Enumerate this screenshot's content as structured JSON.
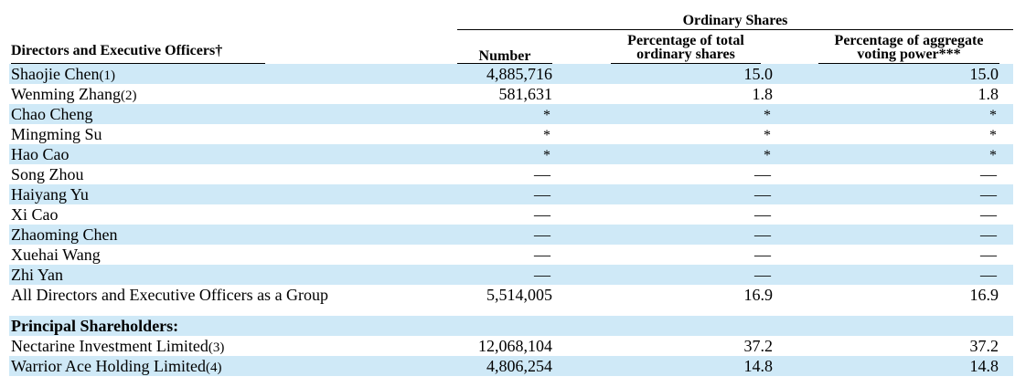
{
  "header": {
    "group_title": "Ordinary Shares",
    "left_label": "Directors and Executive Officers†",
    "col_number": "Number",
    "col_pct_line1": "Percentage of total",
    "col_pct_line2": "ordinary shares",
    "col_vote_line1": "Percentage of aggregate",
    "col_vote_line2": "voting power***"
  },
  "directors": [
    {
      "name": "Shaojie Chen",
      "note": "(1)",
      "number": "4,885,716",
      "pct": "15.0",
      "vote": "15.0"
    },
    {
      "name": "Wenming Zhang",
      "note": "(2)",
      "number": "581,631",
      "pct": "1.8",
      "vote": "1.8"
    },
    {
      "name": "Chao Cheng",
      "note": "",
      "number": "*",
      "pct": "*",
      "vote": "*"
    },
    {
      "name": "Mingming Su",
      "note": "",
      "number": "*",
      "pct": "*",
      "vote": "*"
    },
    {
      "name": "Hao Cao",
      "note": "",
      "number": "*",
      "pct": "*",
      "vote": "*"
    },
    {
      "name": "Song Zhou",
      "note": "",
      "number": "—",
      "pct": "—",
      "vote": "—"
    },
    {
      "name": "Haiyang Yu",
      "note": "",
      "number": "—",
      "pct": "—",
      "vote": "—"
    },
    {
      "name": "Xi Cao",
      "note": "",
      "number": "—",
      "pct": "—",
      "vote": "—"
    },
    {
      "name": "Zhaoming Chen",
      "note": "",
      "number": "—",
      "pct": "—",
      "vote": "—"
    },
    {
      "name": "Xuehai Wang",
      "note": "",
      "number": "—",
      "pct": "—",
      "vote": "—"
    },
    {
      "name": "Zhi Yan",
      "note": "",
      "number": "—",
      "pct": "—",
      "vote": "—"
    },
    {
      "name": "All Directors and Executive Officers as a Group",
      "note": "",
      "number": "5,514,005",
      "pct": "16.9",
      "vote": "16.9"
    }
  ],
  "principal_label": "Principal Shareholders:",
  "principals": [
    {
      "name": "Nectarine Investment Limited",
      "note": "(3)",
      "number": "12,068,104",
      "pct": "37.2",
      "vote": "37.2"
    },
    {
      "name": "Warrior Ace Holding Limited",
      "note": "(4)",
      "number": "4,806,254",
      "pct": "14.8",
      "vote": "14.8"
    }
  ]
}
